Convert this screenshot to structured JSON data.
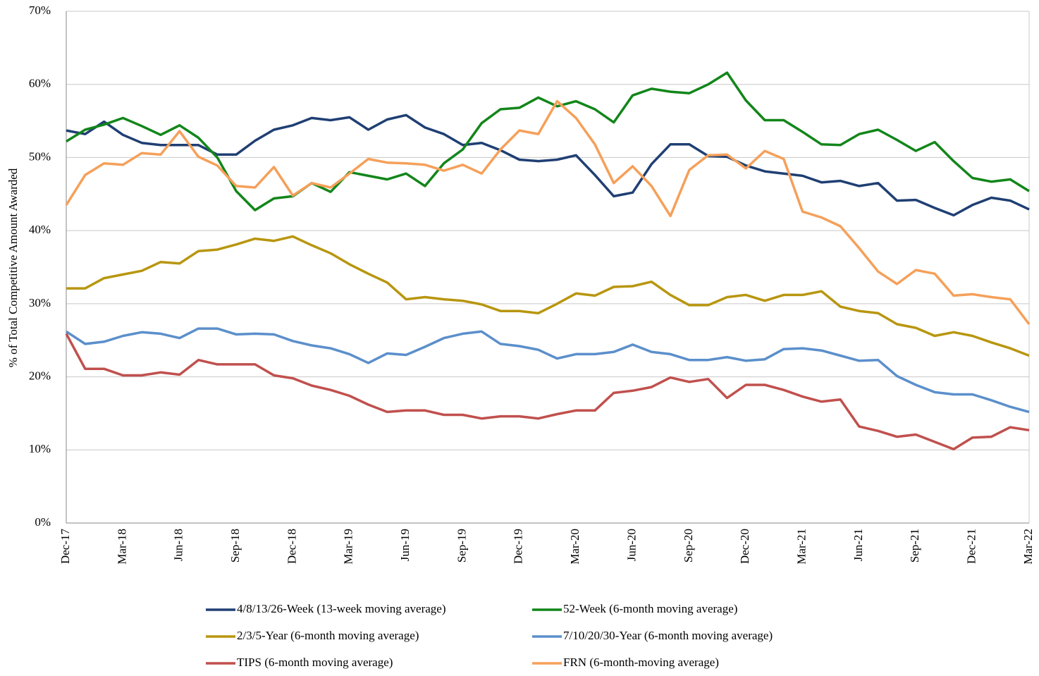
{
  "chart_data": {
    "type": "line",
    "y_label": "% of Total Competitive  Amount Awarded",
    "categories": [
      "Dec-17",
      null,
      null,
      "Mar-18",
      null,
      null,
      "Jun-18",
      null,
      null,
      "Sep-18",
      null,
      null,
      "Dec-18",
      null,
      null,
      "Mar-19",
      null,
      null,
      "Jun-19",
      null,
      null,
      "Sep-19",
      null,
      null,
      "Dec-19",
      null,
      null,
      "Mar-20",
      null,
      null,
      "Jun-20",
      null,
      null,
      "Sep-20",
      null,
      null,
      "Dec-20",
      null,
      null,
      "Mar-21",
      null,
      null,
      "Jun-21",
      null,
      null,
      "Sep-21",
      null,
      null,
      "Dec-21",
      null,
      null,
      "Mar-22"
    ],
    "ylim": [
      0,
      70
    ],
    "yticks": [
      {
        "value": 0,
        "label": "0%"
      },
      {
        "value": 10,
        "label": "10%"
      },
      {
        "value": 20,
        "label": "20%"
      },
      {
        "value": 30,
        "label": "30%"
      },
      {
        "value": 40,
        "label": "40%"
      },
      {
        "value": 50,
        "label": "50%"
      },
      {
        "value": 60,
        "label": "60%"
      },
      {
        "value": 70,
        "label": "70%"
      }
    ],
    "grid": true,
    "series": [
      {
        "name": "4/8/13/26-Week (13-week moving average)",
        "color": "#1f3f73",
        "values": [
          53.7,
          53.2,
          54.9,
          53.1,
          52.0,
          51.7,
          51.7,
          51.7,
          50.4,
          50.4,
          52.3,
          53.8,
          54.4,
          55.4,
          55.1,
          55.5,
          53.8,
          55.2,
          55.8,
          54.1,
          53.2,
          51.7,
          52.0,
          51.0,
          49.7,
          49.5,
          49.7,
          50.3,
          47.6,
          44.7,
          45.2,
          49.1,
          51.8,
          51.8,
          50.2,
          50.1,
          48.9,
          48.1,
          47.8,
          47.5,
          46.6,
          46.8,
          46.1,
          46.5,
          44.1,
          44.2,
          43.1,
          42.1,
          43.5,
          44.5,
          44.1,
          42.9
        ]
      },
      {
        "name": "52-Week (6-month moving average)",
        "color": "#12861a",
        "values": [
          52.2,
          53.8,
          54.5,
          55.4,
          54.3,
          53.1,
          54.4,
          52.7,
          50.0,
          45.4,
          42.8,
          44.4,
          44.7,
          46.5,
          45.3,
          48.0,
          47.5,
          47.0,
          47.8,
          46.1,
          49.2,
          51.1,
          54.7,
          56.6,
          56.8,
          58.2,
          57.0,
          57.7,
          56.6,
          54.8,
          58.5,
          59.4,
          59.0,
          58.8,
          60.0,
          61.6,
          57.8,
          55.1,
          55.1,
          53.5,
          51.8,
          51.7,
          53.2,
          53.8,
          52.4,
          50.9,
          52.1,
          49.5,
          47.2,
          46.7,
          47.0,
          45.4
        ]
      },
      {
        "name": "2/3/5-Year (6-month moving average)",
        "color": "#b8960f",
        "values": [
          32.1,
          32.1,
          33.5,
          34.0,
          34.5,
          35.7,
          35.5,
          37.2,
          37.4,
          38.1,
          38.9,
          38.6,
          39.2,
          38.0,
          36.9,
          35.4,
          34.1,
          32.9,
          30.6,
          30.9,
          30.6,
          30.4,
          29.9,
          29.0,
          29.0,
          28.7,
          30.0,
          31.4,
          31.1,
          32.3,
          32.4,
          33.0,
          31.2,
          29.8,
          29.8,
          30.9,
          31.2,
          30.4,
          31.2,
          31.2,
          31.7,
          29.6,
          29.0,
          28.7,
          27.2,
          26.7,
          25.6,
          26.1,
          25.6,
          24.7,
          23.9,
          22.9
        ]
      },
      {
        "name": "7/10/20/30-Year (6-month moving average)",
        "color": "#5b8fcb",
        "values": [
          26.2,
          24.5,
          24.8,
          25.6,
          26.1,
          25.9,
          25.3,
          26.6,
          26.6,
          25.8,
          25.9,
          25.8,
          24.9,
          24.3,
          23.9,
          23.1,
          21.9,
          23.2,
          23.0,
          24.1,
          25.3,
          25.9,
          26.2,
          24.5,
          24.2,
          23.7,
          22.5,
          23.1,
          23.1,
          23.4,
          24.4,
          23.4,
          23.1,
          22.3,
          22.3,
          22.7,
          22.2,
          22.4,
          23.8,
          23.9,
          23.6,
          22.9,
          22.2,
          22.3,
          20.1,
          18.9,
          17.9,
          17.6,
          17.6,
          16.8,
          15.9,
          15.2
        ]
      },
      {
        "name": "TIPS (6-month moving average)",
        "color": "#c0504d",
        "values": [
          25.9,
          21.1,
          21.1,
          20.2,
          20.2,
          20.6,
          20.3,
          22.3,
          21.7,
          21.7,
          21.7,
          20.2,
          19.8,
          18.8,
          18.2,
          17.4,
          16.2,
          15.2,
          15.4,
          15.4,
          14.8,
          14.8,
          14.3,
          14.6,
          14.6,
          14.3,
          14.9,
          15.4,
          15.4,
          17.8,
          18.1,
          18.6,
          19.9,
          19.3,
          19.7,
          17.1,
          18.9,
          18.9,
          18.2,
          17.3,
          16.6,
          16.9,
          13.2,
          12.6,
          11.8,
          12.1,
          11.1,
          10.1,
          11.7,
          11.8,
          13.1,
          12.7
        ]
      },
      {
        "name": "FRN (6-month-moving average)",
        "color": "#f5a05a",
        "values": [
          43.5,
          47.6,
          49.2,
          49.0,
          50.6,
          50.4,
          53.6,
          50.1,
          48.9,
          46.1,
          45.9,
          48.7,
          44.8,
          46.5,
          45.9,
          47.8,
          49.8,
          49.3,
          49.2,
          49.0,
          48.2,
          49.0,
          47.8,
          51.1,
          53.7,
          53.2,
          57.7,
          55.4,
          51.8,
          46.5,
          48.8,
          46.1,
          42.0,
          48.3,
          50.3,
          50.4,
          48.5,
          50.9,
          49.8,
          42.6,
          41.8,
          40.6,
          37.6,
          34.4,
          32.7,
          34.6,
          34.1,
          31.1,
          31.3,
          30.9,
          30.6,
          27.2
        ]
      }
    ]
  }
}
